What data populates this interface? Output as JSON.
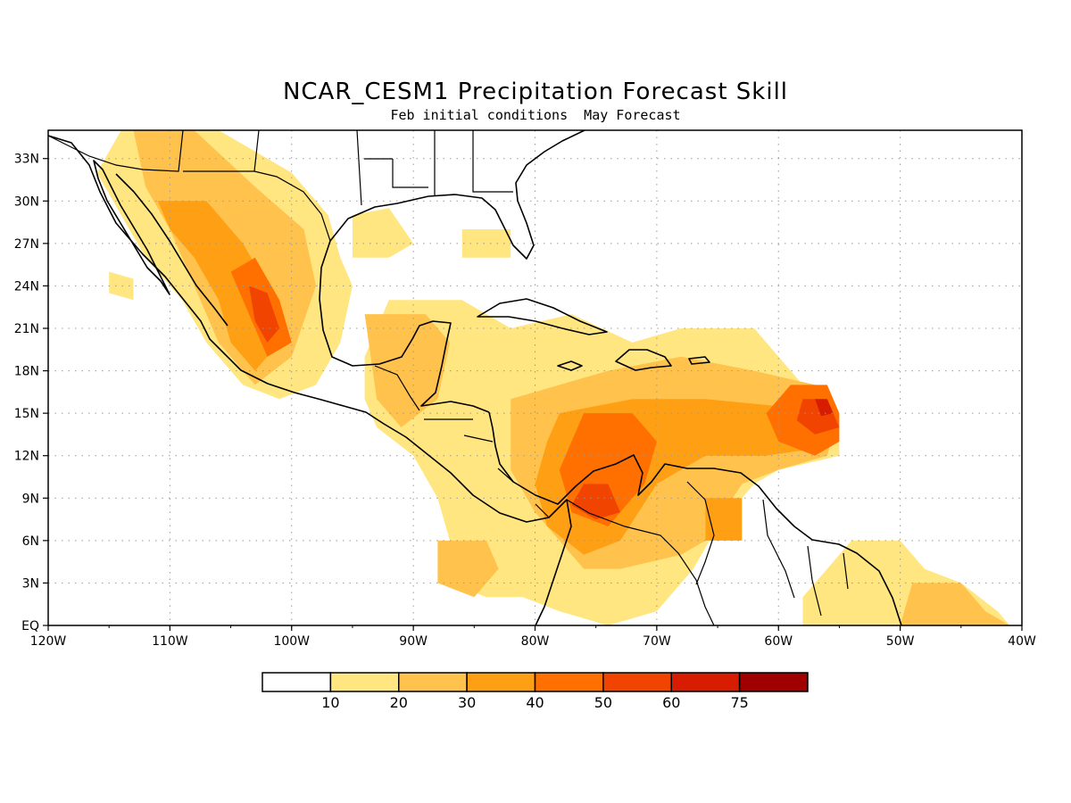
{
  "title": "NCAR_CESM1 Precipitation Forecast Skill",
  "subtitle": "Feb initial conditions  May Forecast",
  "map": {
    "lon_range": [
      -120,
      -40
    ],
    "lat_range": [
      0,
      35
    ],
    "lon_ticks": [
      {
        "value": -120,
        "label": "120W"
      },
      {
        "value": -110,
        "label": "110W"
      },
      {
        "value": -100,
        "label": "100W"
      },
      {
        "value": -90,
        "label": "90W"
      },
      {
        "value": -80,
        "label": "80W"
      },
      {
        "value": -70,
        "label": "70W"
      },
      {
        "value": -60,
        "label": "60W"
      },
      {
        "value": -50,
        "label": "50W"
      },
      {
        "value": -40,
        "label": "40W"
      }
    ],
    "lat_ticks": [
      {
        "value": 0,
        "label": "EQ"
      },
      {
        "value": 3,
        "label": "3N"
      },
      {
        "value": 6,
        "label": "6N"
      },
      {
        "value": 9,
        "label": "9N"
      },
      {
        "value": 12,
        "label": "12N"
      },
      {
        "value": 15,
        "label": "15N"
      },
      {
        "value": 18,
        "label": "18N"
      },
      {
        "value": 21,
        "label": "21N"
      },
      {
        "value": 24,
        "label": "24N"
      },
      {
        "value": 27,
        "label": "27N"
      },
      {
        "value": 30,
        "label": "30N"
      },
      {
        "value": 33,
        "label": "33N"
      }
    ],
    "grid": true
  },
  "colorbar": {
    "labels": [
      "10",
      "20",
      "30",
      "40",
      "50",
      "60",
      "75"
    ],
    "colors": [
      "#ffffff",
      "#ffe680",
      "#ffc24d",
      "#ffa014",
      "#ff7000",
      "#f04400",
      "#d81c00",
      "#a00000"
    ]
  },
  "skill_regions": [
    {
      "level": 1,
      "color": "#ffe680",
      "pts": [
        [
          -114,
          35
        ],
        [
          -106,
          35
        ],
        [
          -100,
          32
        ],
        [
          -97,
          29
        ],
        [
          -96,
          26
        ],
        [
          -95,
          24
        ],
        [
          -96,
          20
        ],
        [
          -98,
          17
        ],
        [
          -101,
          16
        ],
        [
          -104,
          17
        ],
        [
          -107,
          20
        ],
        [
          -109,
          23
        ],
        [
          -112,
          26
        ],
        [
          -114,
          29
        ],
        [
          -116,
          32
        ]
      ]
    },
    {
      "level": 1,
      "color": "#ffe680",
      "pts": [
        [
          -115,
          25
        ],
        [
          -113,
          24.5
        ],
        [
          -113,
          23
        ],
        [
          -115,
          23.5
        ]
      ]
    },
    {
      "level": 1,
      "color": "#ffe680",
      "pts": [
        [
          -95,
          29
        ],
        [
          -92,
          29.5
        ],
        [
          -90,
          27
        ],
        [
          -92,
          26
        ],
        [
          -95,
          26
        ]
      ]
    },
    {
      "level": 1,
      "color": "#ffe680",
      "pts": [
        [
          -86,
          28
        ],
        [
          -82,
          28
        ],
        [
          -82,
          26
        ],
        [
          -86,
          26
        ]
      ]
    },
    {
      "level": 1,
      "color": "#ffe680",
      "pts": [
        [
          -92,
          23
        ],
        [
          -86,
          23
        ],
        [
          -82,
          21
        ],
        [
          -77,
          22
        ],
        [
          -72,
          20
        ],
        [
          -68,
          21
        ],
        [
          -62,
          21
        ],
        [
          -60,
          19
        ],
        [
          -58,
          17
        ],
        [
          -55,
          15
        ],
        [
          -55,
          12
        ],
        [
          -60,
          11
        ],
        [
          -62,
          10
        ],
        [
          -65,
          7
        ],
        [
          -67,
          4
        ],
        [
          -70,
          1
        ],
        [
          -74,
          0
        ],
        [
          -78,
          1
        ],
        [
          -81,
          2
        ],
        [
          -84,
          2
        ],
        [
          -87,
          3
        ],
        [
          -87,
          6
        ],
        [
          -88,
          9
        ],
        [
          -90,
          12
        ],
        [
          -93,
          14
        ],
        [
          -94,
          16
        ],
        [
          -94,
          19
        ]
      ]
    },
    {
      "level": 1,
      "color": "#ffe680",
      "pts": [
        [
          -54,
          6
        ],
        [
          -50,
          6
        ],
        [
          -48,
          4
        ],
        [
          -45,
          3
        ],
        [
          -42,
          1
        ],
        [
          -41,
          0
        ],
        [
          -58,
          0
        ],
        [
          -58,
          2
        ]
      ]
    },
    {
      "level": 2,
      "color": "#ffc24d",
      "pts": [
        [
          -113,
          35
        ],
        [
          -108,
          35
        ],
        [
          -103,
          31
        ],
        [
          -99,
          28
        ],
        [
          -98,
          24
        ],
        [
          -100,
          19
        ],
        [
          -103,
          17
        ],
        [
          -106,
          20
        ],
        [
          -108,
          24
        ],
        [
          -110,
          28
        ],
        [
          -112,
          31
        ]
      ]
    },
    {
      "level": 2,
      "color": "#ffc24d",
      "pts": [
        [
          -94,
          22
        ],
        [
          -89,
          22
        ],
        [
          -87,
          20
        ],
        [
          -88,
          16
        ],
        [
          -91,
          14
        ],
        [
          -93,
          16
        ]
      ]
    },
    {
      "level": 2,
      "color": "#ffc24d",
      "pts": [
        [
          -82,
          16
        ],
        [
          -74,
          18
        ],
        [
          -68,
          19
        ],
        [
          -62,
          18
        ],
        [
          -57,
          17
        ],
        [
          -55,
          15
        ],
        [
          -56,
          12
        ],
        [
          -60,
          11
        ],
        [
          -63,
          10
        ],
        [
          -66,
          6
        ],
        [
          -68,
          5
        ],
        [
          -73,
          4
        ],
        [
          -76,
          4
        ],
        [
          -78,
          6
        ],
        [
          -80,
          8
        ],
        [
          -82,
          11
        ]
      ]
    },
    {
      "level": 2,
      "color": "#ffc24d",
      "pts": [
        [
          -88,
          6
        ],
        [
          -84,
          6
        ],
        [
          -83,
          4
        ],
        [
          -85,
          2
        ],
        [
          -88,
          3
        ]
      ]
    },
    {
      "level": 2,
      "color": "#ffc24d",
      "pts": [
        [
          -49,
          3
        ],
        [
          -45,
          3
        ],
        [
          -43,
          1
        ],
        [
          -41,
          0
        ],
        [
          -50,
          0
        ]
      ]
    },
    {
      "level": 3,
      "color": "#ffa014",
      "pts": [
        [
          -111,
          30
        ],
        [
          -107,
          30
        ],
        [
          -104,
          27
        ],
        [
          -102,
          24
        ],
        [
          -101,
          20
        ],
        [
          -103,
          18
        ],
        [
          -105,
          20
        ],
        [
          -106,
          23
        ],
        [
          -108,
          26
        ],
        [
          -110,
          28
        ]
      ]
    },
    {
      "level": 3,
      "color": "#ffa014",
      "pts": [
        [
          -78,
          15
        ],
        [
          -72,
          16
        ],
        [
          -66,
          16
        ],
        [
          -60,
          15.5
        ],
        [
          -57,
          15
        ],
        [
          -57,
          12.5
        ],
        [
          -61,
          12
        ],
        [
          -66,
          12
        ],
        [
          -70,
          10
        ],
        [
          -73,
          6
        ],
        [
          -76,
          5
        ],
        [
          -79,
          7
        ],
        [
          -80,
          10
        ],
        [
          -79,
          13
        ]
      ]
    },
    {
      "level": 3,
      "color": "#ffa014",
      "pts": [
        [
          -66,
          9
        ],
        [
          -63,
          9
        ],
        [
          -63,
          6
        ],
        [
          -66,
          6
        ]
      ]
    },
    {
      "level": 4,
      "color": "#ff7000",
      "pts": [
        [
          -105,
          25
        ],
        [
          -103,
          26
        ],
        [
          -101,
          23
        ],
        [
          -100,
          20
        ],
        [
          -102,
          19
        ],
        [
          -103,
          21
        ]
      ]
    },
    {
      "level": 4,
      "color": "#ff7000",
      "pts": [
        [
          -76,
          15
        ],
        [
          -72,
          15
        ],
        [
          -70,
          13
        ],
        [
          -71,
          10
        ],
        [
          -74,
          7
        ],
        [
          -77,
          8
        ],
        [
          -78,
          11
        ]
      ]
    },
    {
      "level": 4,
      "color": "#ff7000",
      "pts": [
        [
          -59,
          17
        ],
        [
          -56,
          17
        ],
        [
          -55,
          15
        ],
        [
          -55,
          13
        ],
        [
          -57,
          12
        ],
        [
          -60,
          13
        ],
        [
          -61,
          15
        ]
      ]
    },
    {
      "level": 5,
      "color": "#f04400",
      "pts": [
        [
          -103.5,
          24
        ],
        [
          -102,
          23.5
        ],
        [
          -101,
          21
        ],
        [
          -102,
          20
        ],
        [
          -103,
          21.5
        ]
      ]
    },
    {
      "level": 5,
      "color": "#f04400",
      "pts": [
        [
          -76,
          10
        ],
        [
          -74,
          10
        ],
        [
          -73,
          8
        ],
        [
          -75,
          7.5
        ],
        [
          -77,
          8.5
        ]
      ]
    },
    {
      "level": 5,
      "color": "#f04400",
      "pts": [
        [
          -58,
          16
        ],
        [
          -56,
          16
        ],
        [
          -55,
          14
        ],
        [
          -57,
          13.5
        ],
        [
          -58.5,
          14.5
        ]
      ]
    },
    {
      "level": 6,
      "color": "#d81c00",
      "pts": [
        [
          -57,
          16
        ],
        [
          -56,
          16
        ],
        [
          -55.5,
          15
        ],
        [
          -56.5,
          14.8
        ]
      ]
    }
  ]
}
